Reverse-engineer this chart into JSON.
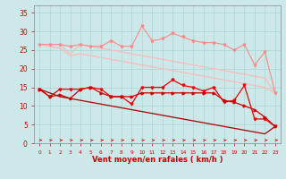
{
  "x": [
    0,
    1,
    2,
    3,
    4,
    5,
    6,
    7,
    8,
    9,
    10,
    11,
    12,
    13,
    14,
    15,
    16,
    17,
    18,
    19,
    20,
    21,
    22,
    23
  ],
  "line1_pink_upper": [
    26.5,
    26.5,
    26.5,
    26.0,
    26.5,
    26.0,
    26.0,
    27.5,
    26.0,
    26.0,
    31.5,
    27.5,
    28.0,
    29.5,
    28.5,
    27.5,
    27.0,
    27.0,
    26.5,
    25.0,
    26.5,
    21.0,
    24.5,
    13.5
  ],
  "line2_pink_diag_upper": [
    26.5,
    26.5,
    26.5,
    24.0,
    26.5,
    26.0,
    25.5,
    25.0,
    24.5,
    24.0,
    23.5,
    23.0,
    22.5,
    22.0,
    21.5,
    21.0,
    20.5,
    20.0,
    19.5,
    19.0,
    18.5,
    18.0,
    17.5,
    13.5
  ],
  "line3_pink_diag_lower": [
    26.5,
    26.0,
    25.5,
    23.5,
    24.0,
    23.5,
    23.0,
    22.5,
    22.0,
    21.5,
    21.0,
    20.5,
    20.0,
    19.5,
    19.0,
    18.5,
    18.0,
    17.5,
    17.0,
    16.5,
    16.0,
    15.5,
    15.0,
    13.5
  ],
  "line4_red_wavy": [
    14.5,
    12.5,
    14.5,
    14.5,
    14.5,
    15.0,
    14.5,
    12.5,
    12.5,
    10.5,
    15.0,
    15.0,
    15.0,
    17.0,
    15.5,
    15.0,
    14.0,
    15.0,
    11.0,
    11.5,
    15.5,
    6.5,
    6.5,
    4.5
  ],
  "line5_red_mid": [
    14.5,
    12.5,
    13.0,
    12.0,
    14.5,
    15.0,
    13.5,
    12.5,
    12.5,
    12.5,
    13.5,
    13.5,
    13.5,
    13.5,
    13.5,
    13.5,
    13.5,
    13.5,
    11.5,
    11.0,
    10.0,
    9.0,
    7.0,
    4.5
  ],
  "line6_red_diag": [
    14.5,
    13.5,
    12.5,
    12.0,
    11.5,
    11.0,
    10.5,
    10.0,
    9.5,
    9.0,
    8.5,
    8.0,
    7.5,
    7.0,
    6.5,
    6.0,
    5.5,
    5.0,
    4.5,
    4.0,
    3.5,
    3.0,
    2.5,
    4.5
  ],
  "bg_color": "#cce8e8",
  "grid_color": "#aad4d4",
  "xlabel": "Vent moyen/en rafales ( km/h )",
  "xlabel_color": "#cc0000",
  "tick_color": "#cc0000",
  "ylim": [
    0,
    37
  ],
  "yticks": [
    0,
    5,
    10,
    15,
    20,
    25,
    30,
    35
  ],
  "xlim": [
    -0.5,
    23.5
  ]
}
